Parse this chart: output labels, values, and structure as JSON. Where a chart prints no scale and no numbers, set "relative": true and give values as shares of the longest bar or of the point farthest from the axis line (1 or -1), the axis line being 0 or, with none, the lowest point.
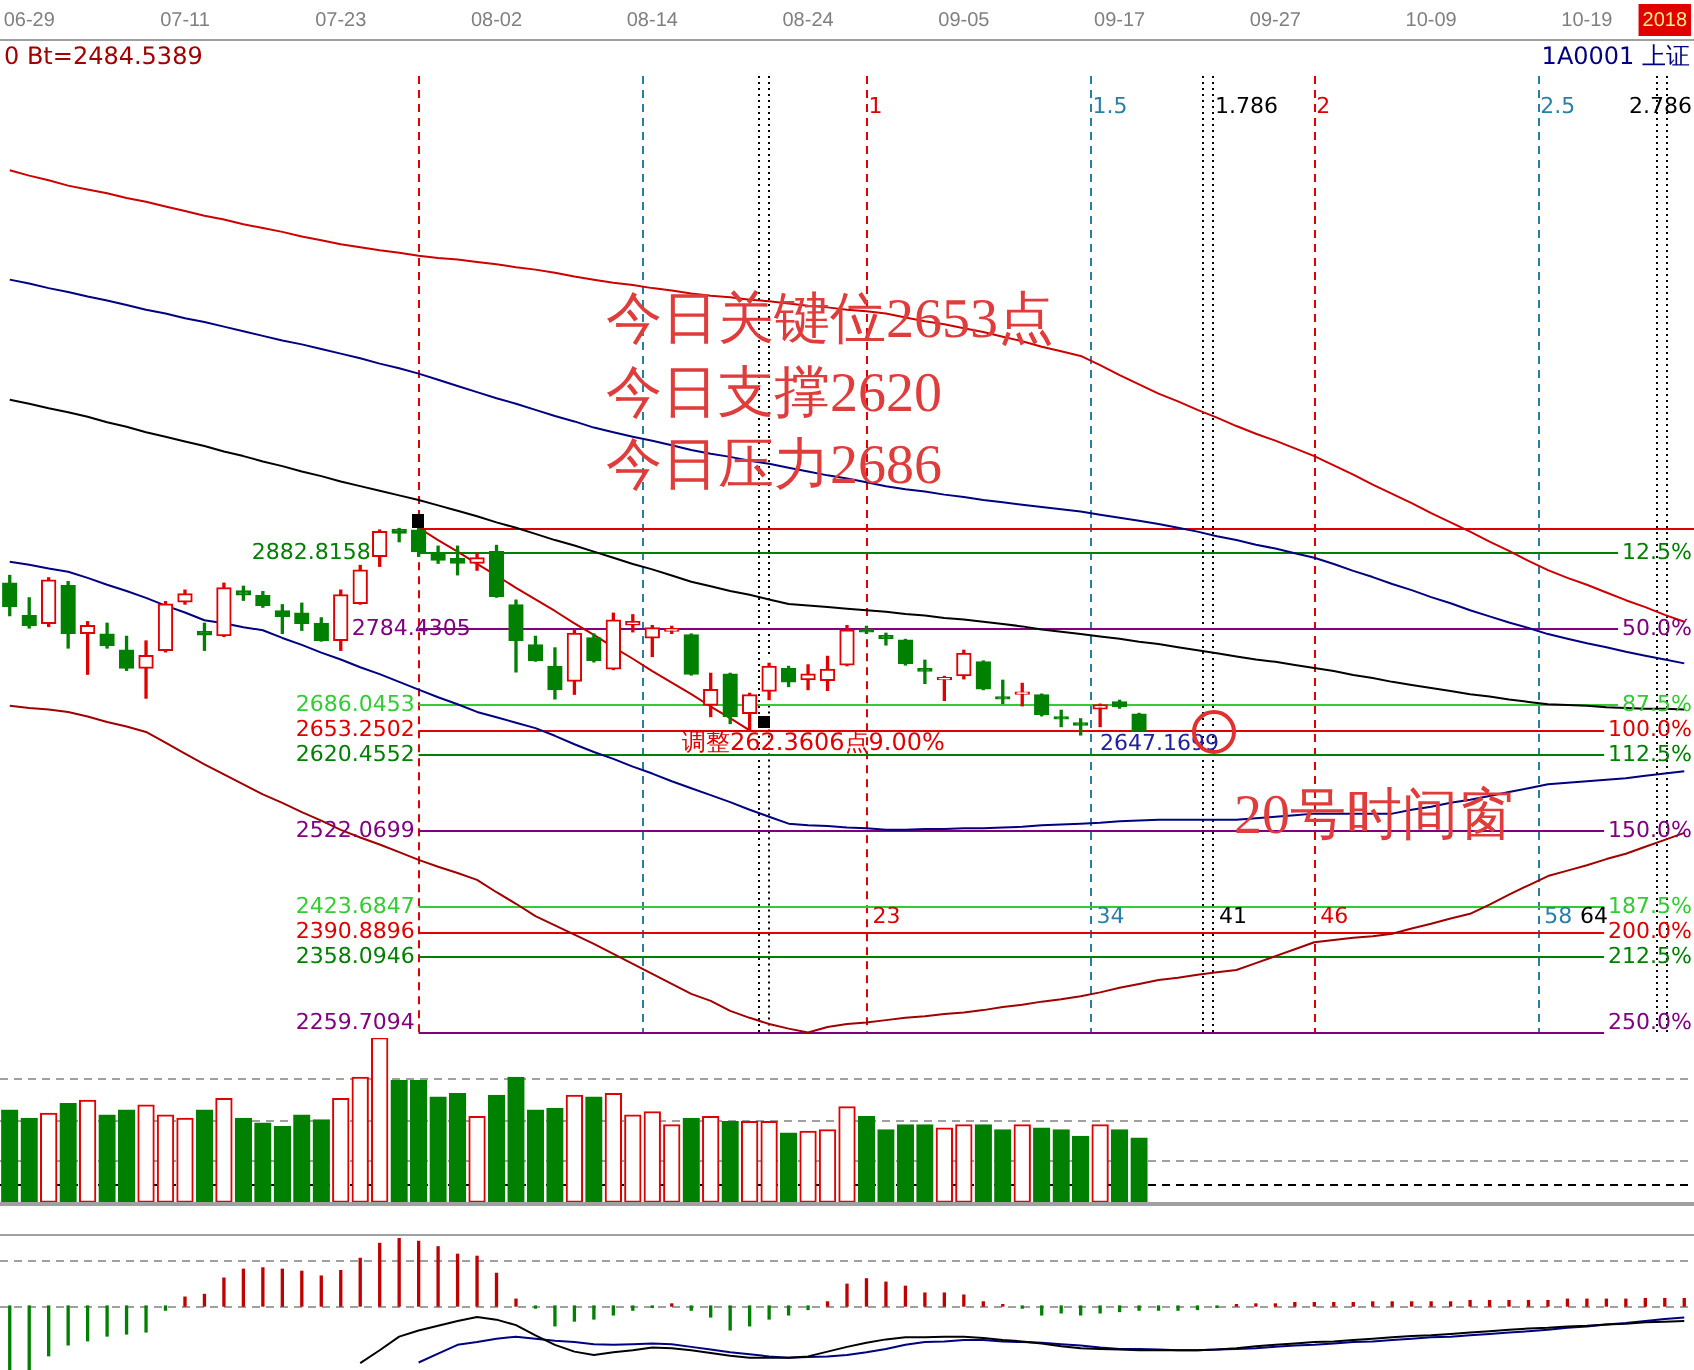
{
  "chart_data": [
    {
      "type": "candlestick",
      "tick_labels": "x",
      "ylim": [
        2259,
        3549
      ],
      "categories": [
        null,
        "06-29",
        null,
        null,
        null,
        null,
        null,
        null,
        null,
        "07-11",
        null,
        null,
        null,
        null,
        null,
        null,
        null,
        "07-23",
        null,
        null,
        null,
        null,
        null,
        null,
        null,
        "08-02",
        null,
        null,
        null,
        null,
        null,
        null,
        null,
        "08-14",
        null,
        null,
        null,
        null,
        null,
        null,
        null,
        "08-24",
        null,
        null,
        null,
        null,
        null,
        null,
        null,
        "09-05",
        null,
        null,
        null,
        null,
        null,
        null,
        null,
        "09-17",
        null,
        null,
        null,
        null,
        null,
        null,
        null,
        "09-27",
        null,
        null,
        null,
        null,
        null,
        null,
        null,
        "10-09",
        null,
        null,
        null,
        null,
        null,
        null,
        null,
        "10-19",
        null,
        null,
        null,
        "2018",
        null
      ],
      "ohlc": [
        [
          2844,
          2854,
          2802,
          2814
        ],
        [
          2802,
          2825,
          2786,
          2789
        ],
        [
          2792,
          2851,
          2788,
          2848
        ],
        [
          2841,
          2846,
          2760,
          2779
        ],
        [
          2779,
          2794,
          2726,
          2789
        ],
        [
          2778,
          2792,
          2760,
          2763
        ],
        [
          2757,
          2775,
          2731,
          2734
        ],
        [
          2734,
          2769,
          2695,
          2750
        ],
        [
          2757,
          2820,
          2755,
          2817
        ],
        [
          2820,
          2835,
          2817,
          2830
        ],
        [
          2781,
          2792,
          2757,
          2777
        ],
        [
          2776,
          2844,
          2775,
          2838
        ],
        [
          2834,
          2840,
          2822,
          2829
        ],
        [
          2828,
          2833,
          2813,
          2815
        ],
        [
          2808,
          2816,
          2779,
          2801
        ],
        [
          2805,
          2818,
          2783,
          2792
        ],
        [
          2792,
          2799,
          2769,
          2770
        ],
        [
          2770,
          2835,
          2757,
          2829
        ],
        [
          2818,
          2867,
          2817,
          2861
        ],
        [
          2879,
          2913,
          2866,
          2911
        ],
        [
          2914,
          2915,
          2898,
          2909
        ],
        [
          2913,
          2915.6108,
          2879,
          2885
        ],
        [
          2883,
          2892,
          2870,
          2874
        ],
        [
          2876,
          2892,
          2855,
          2870
        ],
        [
          2870,
          2883,
          2861,
          2877
        ],
        [
          2885,
          2893,
          2826,
          2827
        ],
        [
          2816,
          2822,
          2729,
          2770
        ],
        [
          2764,
          2775,
          2743,
          2744
        ],
        [
          2736,
          2760,
          2694,
          2706
        ],
        [
          2717,
          2783,
          2700,
          2779
        ],
        [
          2773,
          2778,
          2742,
          2744
        ],
        [
          2733,
          2805,
          2732,
          2796
        ],
        [
          2790,
          2803,
          2781,
          2794
        ],
        [
          2773,
          2789,
          2749,
          2786
        ],
        [
          2782,
          2788,
          2779,
          2785
        ],
        [
          2777,
          2778,
          2725,
          2726
        ],
        [
          2686,
          2727,
          2671,
          2706
        ],
        [
          2726,
          2727,
          2662,
          2671
        ],
        [
          2675,
          2701,
          2653.2502,
          2699
        ],
        [
          2704,
          2740,
          2693,
          2736
        ],
        [
          2733,
          2736,
          2710,
          2716
        ],
        [
          2719,
          2738,
          2706,
          2726
        ],
        [
          2718,
          2749,
          2705,
          2732
        ],
        [
          2738,
          2789,
          2737,
          2783
        ],
        [
          2784,
          2788,
          2779,
          2781
        ],
        [
          2776,
          2779,
          2764,
          2772
        ],
        [
          2770,
          2771,
          2738,
          2740
        ],
        [
          2733,
          2744,
          2714,
          2730
        ],
        [
          2719,
          2723,
          2692,
          2721
        ],
        [
          2724,
          2757,
          2720,
          2753
        ],
        [
          2742,
          2743,
          2706,
          2707
        ],
        [
          2696,
          2718,
          2688,
          2694
        ],
        [
          2700,
          2714,
          2685,
          2702
        ],
        [
          2699,
          2700,
          2672,
          2674
        ],
        [
          2669,
          2679,
          2658,
          2668
        ],
        [
          2661,
          2668,
          2647.1699,
          2660
        ],
        [
          2681,
          2687,
          2658,
          2686
        ],
        [
          2690,
          2692,
          2682,
          2684
        ],
        [
          2674,
          2675,
          2652,
          2653
        ],
        null,
        null,
        null,
        null,
        null,
        null,
        null,
        null,
        null,
        null,
        null,
        null,
        null,
        null,
        null,
        null,
        null,
        null,
        null,
        null,
        null,
        null,
        null,
        null,
        null,
        null,
        null,
        null
      ],
      "colors": [
        "#008000",
        "#008000",
        "#e00000",
        "#008000",
        "#e00000",
        "#008000",
        "#008000",
        "#e00000",
        "#e00000",
        "#e00000",
        "#008000",
        "#e00000",
        "#008000",
        "#008000",
        "#008000",
        "#008000",
        "#008000",
        "#e00000",
        "#e00000",
        "#e00000",
        "#008000",
        "#008000",
        "#008000",
        "#008000",
        "#e00000",
        "#008000",
        "#008000",
        "#008000",
        "#008000",
        "#e00000",
        "#008000",
        "#e00000",
        "#e00000",
        "#e00000",
        "#e00000",
        "#008000",
        "#e00000",
        "#008000",
        "#e00000",
        "#e00000",
        "#008000",
        "#e00000",
        "#e00000",
        "#e00000",
        "#008000",
        "#008000",
        "#008000",
        "#008000",
        "#e00000",
        "#e00000",
        "#008000",
        "#008000",
        "#e00000",
        "#008000",
        "#008000",
        "#008000",
        "#e00000",
        "#008000",
        "#008000",
        null,
        null,
        null,
        null,
        null,
        null,
        null,
        null,
        null,
        null,
        null,
        null,
        null,
        null,
        null,
        null,
        null,
        null,
        null,
        null,
        null,
        null,
        null,
        null,
        null,
        null,
        null,
        null
      ],
      "series": [
        {
          "type": "line",
          "color": "#cc0000",
          "values": [
            3380,
            3373,
            3367,
            3360,
            3355,
            3350,
            3344,
            3339,
            3333,
            3327,
            3321,
            3316,
            3310,
            3305,
            3300,
            3294,
            3289,
            3284,
            3280,
            3276,
            3273,
            3269,
            3266,
            3264,
            3261,
            3258,
            3254,
            3251,
            3247,
            3242,
            3238,
            3234,
            3231,
            3227,
            3224,
            3220,
            3217,
            3215,
            3212,
            3210,
            3207,
            3204,
            3202,
            3199,
            3197,
            3194,
            3189,
            3184,
            3180,
            3175,
            3170,
            3164,
            3158,
            3151,
            3145,
            3139,
            3127,
            3114,
            3102,
            3090,
            3080,
            3069,
            3059,
            3048,
            3038,
            3029,
            3019,
            3009,
            2997,
            2985,
            2972,
            2960,
            2948,
            2935,
            2923,
            2911,
            2898,
            2886,
            2873,
            2861,
            2851,
            2842,
            2832,
            2822,
            2813,
            2803,
            2794
          ]
        },
        {
          "type": "line",
          "color": "#000080",
          "values": [
            3238,
            3233,
            3227,
            3222,
            3216,
            3211,
            3205,
            3199,
            3194,
            3188,
            3183,
            3177,
            3171,
            3165,
            3159,
            3154,
            3148,
            3142,
            3136,
            3129,
            3123,
            3116,
            3108,
            3100,
            3092,
            3084,
            3077,
            3069,
            3061,
            3054,
            3046,
            3040,
            3034,
            3029,
            3023,
            3017,
            3012,
            3008,
            3003,
            2999,
            2994,
            2989,
            2984,
            2980,
            2975,
            2970,
            2966,
            2963,
            2959,
            2956,
            2952,
            2949,
            2946,
            2943,
            2940,
            2937,
            2933,
            2929,
            2925,
            2921,
            2916,
            2911,
            2905,
            2900,
            2894,
            2889,
            2883,
            2877,
            2869,
            2860,
            2852,
            2843,
            2835,
            2826,
            2818,
            2809,
            2801,
            2793,
            2786,
            2778,
            2772,
            2766,
            2761,
            2755,
            2750,
            2745,
            2740
          ]
        },
        {
          "type": "line",
          "color": "#000000",
          "values": [
            3082,
            3077,
            3071,
            3066,
            3060,
            3053,
            3047,
            3040,
            3034,
            3028,
            3022,
            3015,
            3009,
            3002,
            2996,
            2989,
            2983,
            2976,
            2970,
            2964,
            2958,
            2952,
            2945,
            2938,
            2931,
            2923,
            2916,
            2908,
            2900,
            2893,
            2885,
            2877,
            2869,
            2862,
            2854,
            2846,
            2840,
            2834,
            2829,
            2823,
            2817,
            2815,
            2813,
            2811,
            2809,
            2807,
            2804,
            2802,
            2799,
            2797,
            2794,
            2791,
            2788,
            2784,
            2781,
            2778,
            2775,
            2772,
            2768,
            2765,
            2761,
            2757,
            2753,
            2749,
            2745,
            2742,
            2738,
            2734,
            2730,
            2725,
            2721,
            2716,
            2712,
            2708,
            2704,
            2700,
            2697,
            2693,
            2690,
            2687,
            2686,
            2685,
            2683,
            2682,
            2681,
            2681,
            2680
          ]
        },
        {
          "type": "line",
          "color": "#000080",
          "values": [
            2872,
            2868,
            2863,
            2859,
            2851,
            2842,
            2834,
            2825,
            2815,
            2806,
            2796,
            2792,
            2787,
            2783,
            2773,
            2764,
            2754,
            2745,
            2735,
            2726,
            2716,
            2706,
            2696,
            2687,
            2677,
            2670,
            2663,
            2656,
            2646,
            2635,
            2625,
            2616,
            2606,
            2597,
            2587,
            2578,
            2569,
            2560,
            2550,
            2541,
            2532,
            2530,
            2529,
            2527,
            2526,
            2524,
            2524,
            2525,
            2525,
            2526,
            2526,
            2527,
            2528,
            2530,
            2531,
            2532,
            2533,
            2535,
            2536,
            2537,
            2537,
            2537,
            2537,
            2537,
            2539,
            2541,
            2543,
            2545,
            2545,
            2545,
            2545,
            2545,
            2550,
            2554,
            2559,
            2563,
            2568,
            2573,
            2578,
            2583,
            2585,
            2587,
            2589,
            2591,
            2594,
            2597,
            2600
          ]
        },
        {
          "type": "line",
          "color": "#a00000",
          "values": [
            2685,
            2682,
            2680,
            2677,
            2671,
            2664,
            2658,
            2651,
            2637,
            2623,
            2609,
            2596,
            2583,
            2570,
            2559,
            2547,
            2536,
            2524,
            2514,
            2505,
            2495,
            2485,
            2476,
            2468,
            2459,
            2443,
            2428,
            2412,
            2400,
            2388,
            2376,
            2363,
            2350,
            2337,
            2324,
            2311,
            2302,
            2289,
            2280,
            2272,
            2266,
            2261,
            2268,
            2272,
            2274,
            2277,
            2280,
            2282,
            2285,
            2287,
            2290,
            2294,
            2297,
            2301,
            2304,
            2308,
            2313,
            2319,
            2324,
            2329,
            2332,
            2336,
            2339,
            2342,
            2351,
            2360,
            2369,
            2378,
            2381,
            2384,
            2386,
            2389,
            2396,
            2402,
            2409,
            2415,
            2427,
            2440,
            2452,
            2464,
            2471,
            2478,
            2486,
            2493,
            2502,
            2511,
            2520
          ]
        },
        {
          "type": "line",
          "color": "#c00000",
          "values": [
            null,
            null,
            null,
            null,
            null,
            null,
            null,
            null,
            null,
            null,
            null,
            null,
            null,
            null,
            null,
            null,
            null,
            null,
            null,
            null,
            null,
            2916,
            2900,
            2885,
            2869,
            2854,
            2838,
            2823,
            2808,
            2792,
            2777,
            2761,
            2746,
            2730,
            2715,
            2700,
            2684,
            2669,
            2653,
            null,
            null,
            null,
            null,
            null,
            null,
            null,
            null,
            null,
            null,
            null,
            null,
            null,
            null,
            null,
            null,
            null,
            null,
            null,
            null,
            null,
            null,
            null,
            null,
            null,
            null,
            null,
            null,
            null,
            null,
            null,
            null,
            null,
            null,
            null,
            null,
            null,
            null,
            null,
            null,
            null,
            null,
            null,
            null,
            null,
            null,
            null,
            null
          ]
        }
      ],
      "ref_lines": [
        {
          "axis": "y",
          "value": 2915.6108,
          "color": "#e00000"
        },
        {
          "axis": "y",
          "value": 2882.8158,
          "label": "2882.8158",
          "color": "#008000"
        },
        {
          "axis": "y",
          "value": 2784.4305,
          "label": "2784.4305",
          "color": "#800080"
        },
        {
          "axis": "y",
          "value": 2686.0453,
          "label": "2686.0453",
          "color": "#33cc33"
        },
        {
          "axis": "y",
          "value": 2653.2502,
          "label": "2653.2502",
          "color": "#e00000"
        },
        {
          "axis": "y",
          "value": 2620.4552,
          "label": "2620.4552",
          "color": "#008000"
        },
        {
          "axis": "y",
          "value": 2522.0699,
          "label": "2522.0699",
          "color": "#800080"
        },
        {
          "axis": "y",
          "value": 2423.6847,
          "label": "2423.6847",
          "color": "#33cc33"
        },
        {
          "axis": "y",
          "value": 2390.8896,
          "label": "2390.8896",
          "color": "#e00000"
        },
        {
          "axis": "y",
          "value": 2358.0946,
          "label": "2358.0946",
          "color": "#008000"
        },
        {
          "axis": "y",
          "value": 2259.7094,
          "label": "2259.7094",
          "color": "#800080"
        }
      ],
      "annotations": [
        "0 Bt=2484.5389",
        "1A0001 上证",
        "今日关键位2653点",
        "今日支撑2620",
        "今日压力2686",
        "20号时间窗",
        "1",
        "1.5",
        "1.786",
        "2",
        "2.5",
        "2.786",
        "12.5%",
        "50.0%",
        "87.5%",
        "100.0%",
        "112.5%",
        "150.0%",
        "187.5%",
        "200.0%",
        "212.5%",
        "250.0%",
        "23",
        "34",
        "41",
        "46",
        "58",
        "64",
        "调整262.3606点9.00%",
        "2647.1699"
      ]
    },
    {
      "type": "bar",
      "relative": true,
      "tick_labels": false,
      "categories": [
        null,
        null,
        null,
        null,
        null,
        null,
        null,
        null,
        null,
        null,
        null,
        null,
        null,
        null,
        null,
        null,
        null,
        null,
        null,
        null,
        null,
        null,
        null,
        null,
        null,
        null,
        null,
        null,
        null,
        null,
        null,
        null,
        null,
        null,
        null,
        null,
        null,
        null,
        null,
        null,
        null,
        null,
        null,
        null,
        null,
        null,
        null,
        null,
        null,
        null,
        null,
        null,
        null,
        null,
        null,
        null,
        null,
        null,
        null,
        null,
        null,
        null,
        null,
        null,
        null,
        null,
        null,
        null,
        null,
        null,
        null,
        null,
        null,
        null,
        null,
        null,
        null,
        null,
        null,
        null,
        null,
        null,
        null,
        null,
        null,
        null,
        null
      ],
      "values": [
        0.56,
        0.51,
        0.54,
        0.6,
        0.62,
        0.53,
        0.56,
        0.59,
        0.53,
        0.51,
        0.56,
        0.63,
        0.51,
        0.48,
        0.46,
        0.53,
        0.5,
        0.63,
        0.76,
        1,
        0.74,
        0.74,
        0.64,
        0.66,
        0.52,
        0.65,
        0.76,
        0.56,
        0.57,
        0.65,
        0.64,
        0.66,
        0.53,
        0.55,
        0.47,
        0.51,
        0.52,
        0.49,
        0.49,
        0.49,
        0.42,
        0.43,
        0.44,
        0.58,
        0.52,
        0.44,
        0.47,
        0.47,
        0.45,
        0.47,
        0.47,
        0.44,
        0.47,
        0.45,
        0.44,
        0.4,
        0.47,
        0.44,
        0.39,
        null,
        null,
        null,
        null,
        null,
        null,
        null,
        null,
        null,
        null,
        null,
        null,
        null,
        null,
        null,
        null,
        null,
        null,
        null,
        null,
        null,
        null,
        null,
        null,
        null,
        null,
        null,
        null
      ],
      "colors": [
        "#008000",
        "#008000",
        "#e00000",
        "#008000",
        "#e00000",
        "#008000",
        "#008000",
        "#e00000",
        "#e00000",
        "#e00000",
        "#008000",
        "#e00000",
        "#008000",
        "#008000",
        "#008000",
        "#008000",
        "#008000",
        "#e00000",
        "#e00000",
        "#e00000",
        "#008000",
        "#008000",
        "#008000",
        "#008000",
        "#e00000",
        "#008000",
        "#008000",
        "#008000",
        "#008000",
        "#e00000",
        "#008000",
        "#e00000",
        "#e00000",
        "#e00000",
        "#e00000",
        "#008000",
        "#e00000",
        "#008000",
        "#e00000",
        "#e00000",
        "#008000",
        "#e00000",
        "#e00000",
        "#e00000",
        "#008000",
        "#008000",
        "#008000",
        "#008000",
        "#e00000",
        "#e00000",
        "#008000",
        "#008000",
        "#e00000",
        "#008000",
        "#008000",
        "#008000",
        "#e00000",
        "#008000",
        "#008000",
        null,
        null,
        null,
        null,
        null,
        null,
        null,
        null,
        null,
        null,
        null,
        null,
        null,
        null,
        null,
        null,
        null,
        null,
        null,
        null,
        null,
        null,
        null,
        null,
        null,
        null,
        null,
        null
      ],
      "ref_lines": [
        {
          "axis": "y",
          "value": 0.75,
          "color": "#a0a0a0",
          "line_style": "dashed"
        },
        {
          "axis": "y",
          "value": 0.5,
          "color": "#a0a0a0",
          "line_style": "dashed"
        },
        {
          "axis": "y",
          "value": 0.25,
          "color": "#a0a0a0",
          "line_style": "dashed"
        },
        {
          "axis": "y",
          "value": 0.1,
          "color": "#000000",
          "line_style": "dashed"
        }
      ]
    },
    {
      "type": "bar",
      "relative": true,
      "tick_labels": false,
      "categories": [
        null,
        null,
        null,
        null,
        null,
        null,
        null,
        null,
        null,
        null,
        null,
        null,
        null,
        null,
        null,
        null,
        null,
        null,
        null,
        null,
        null,
        null,
        null,
        null,
        null,
        null,
        null,
        null,
        null,
        null,
        null,
        null,
        null,
        null,
        null,
        null,
        null,
        null,
        null,
        null,
        null,
        null,
        null,
        null,
        null,
        null,
        null,
        null,
        null,
        null,
        null,
        null,
        null,
        null,
        null,
        null,
        null,
        null,
        null,
        null,
        null,
        null,
        null,
        null,
        null,
        null,
        null,
        null,
        null,
        null,
        null,
        null,
        null,
        null,
        null,
        null,
        null,
        null,
        null,
        null,
        null,
        null,
        null,
        null,
        null,
        null,
        null
      ],
      "series": [
        {
          "type": "bar",
          "values": [
            -0.94,
            -0.94,
            -0.73,
            -0.57,
            -0.51,
            -0.44,
            -0.41,
            -0.38,
            -0.06,
            0.13,
            0.17,
            0.41,
            0.54,
            0.56,
            0.54,
            0.51,
            0.44,
            0.52,
            0.7,
            0.92,
            1,
            0.95,
            0.87,
            0.76,
            0.73,
            0.48,
            0.1,
            -0.03,
            -0.29,
            -0.22,
            -0.19,
            -0.13,
            -0.06,
            -0.02,
            0.03,
            -0.06,
            -0.16,
            -0.35,
            -0.29,
            -0.19,
            -0.13,
            -0.05,
            0.06,
            0.32,
            0.4,
            0.35,
            0.29,
            0.19,
            0.19,
            0.16,
            0.06,
            0.02,
            -0.03,
            -0.13,
            -0.1,
            -0.13,
            -0.1,
            -0.08,
            -0.06,
            -0.06,
            -0.06,
            -0.05,
            -0.02,
            0.02,
            0.03,
            0.03,
            0.05,
            0.05,
            0.05,
            0.05,
            0.06,
            0.06,
            0.06,
            0.06,
            0.06,
            0.08,
            0.08,
            0.08,
            0.08,
            0.08,
            0.1,
            0.1,
            0.1,
            0.1,
            0.11,
            0.11,
            0.11
          ],
          "colors": [
            "#008000",
            "#008000",
            "#008000",
            "#008000",
            "#008000",
            "#008000",
            "#008000",
            "#008000",
            "#008000",
            "#c00000",
            "#c00000",
            "#c00000",
            "#c00000",
            "#c00000",
            "#c00000",
            "#c00000",
            "#c00000",
            "#c00000",
            "#c00000",
            "#c00000",
            "#c00000",
            "#c00000",
            "#c00000",
            "#c00000",
            "#c00000",
            "#c00000",
            "#c00000",
            "#008000",
            "#008000",
            "#008000",
            "#008000",
            "#008000",
            "#008000",
            "#008000",
            "#c00000",
            "#008000",
            "#008000",
            "#008000",
            "#008000",
            "#008000",
            "#008000",
            "#008000",
            "#c00000",
            "#c00000",
            "#c00000",
            "#c00000",
            "#c00000",
            "#c00000",
            "#c00000",
            "#c00000",
            "#c00000",
            "#c00000",
            "#008000",
            "#008000",
            "#008000",
            "#008000",
            "#008000",
            "#008000",
            "#008000",
            "#008000",
            "#008000",
            "#008000",
            "#008000",
            "#c00000",
            "#c00000",
            "#c00000",
            "#c00000",
            "#c00000",
            "#c00000",
            "#c00000",
            "#c00000",
            "#c00000",
            "#c00000",
            "#c00000",
            "#c00000",
            "#c00000",
            "#c00000",
            "#c00000",
            "#c00000",
            "#c00000",
            "#c00000",
            "#c00000",
            "#c00000",
            "#c00000",
            "#c00000",
            "#c00000",
            "#c00000"
          ]
        },
        {
          "type": "line",
          "color": "#000000",
          "values": [
            null,
            null,
            null,
            null,
            null,
            null,
            null,
            null,
            null,
            null,
            null,
            null,
            null,
            null,
            null,
            null,
            null,
            null,
            -0.84,
            -0.65,
            -0.45,
            -0.36,
            -0.29,
            -0.22,
            -0.16,
            -0.2,
            -0.28,
            -0.43,
            -0.57,
            -0.67,
            -0.72,
            -0.68,
            -0.65,
            -0.61,
            -0.62,
            -0.65,
            -0.69,
            -0.73,
            -0.76,
            -0.76,
            -0.76,
            -0.74,
            -0.67,
            -0.6,
            -0.54,
            -0.49,
            -0.46,
            -0.46,
            -0.45,
            -0.45,
            -0.47,
            -0.5,
            -0.52,
            -0.55,
            -0.59,
            -0.62,
            -0.63,
            -0.64,
            -0.65,
            -0.65,
            -0.65,
            -0.65,
            -0.64,
            -0.62,
            -0.59,
            -0.57,
            -0.55,
            -0.53,
            -0.52,
            -0.5,
            -0.48,
            -0.46,
            -0.44,
            -0.43,
            -0.41,
            -0.39,
            -0.37,
            -0.35,
            -0.33,
            -0.32,
            -0.3,
            -0.29,
            -0.27,
            -0.26,
            -0.24,
            -0.23,
            -0.22
          ]
        },
        {
          "type": "line",
          "color": "#000080",
          "values": [
            null,
            null,
            null,
            null,
            null,
            null,
            null,
            null,
            null,
            null,
            null,
            null,
            null,
            null,
            null,
            null,
            null,
            null,
            null,
            null,
            null,
            -0.83,
            -0.7,
            -0.57,
            -0.53,
            -0.48,
            -0.45,
            -0.48,
            -0.51,
            -0.53,
            -0.56,
            -0.57,
            -0.56,
            -0.55,
            -0.56,
            -0.6,
            -0.64,
            -0.68,
            -0.71,
            -0.74,
            -0.76,
            -0.75,
            -0.74,
            -0.72,
            -0.68,
            -0.63,
            -0.57,
            -0.53,
            -0.52,
            -0.5,
            -0.5,
            -0.52,
            -0.53,
            -0.54,
            -0.56,
            -0.58,
            -0.61,
            -0.63,
            -0.63,
            -0.64,
            -0.65,
            -0.65,
            -0.64,
            -0.63,
            -0.62,
            -0.6,
            -0.58,
            -0.57,
            -0.55,
            -0.53,
            -0.52,
            -0.5,
            -0.48,
            -0.46,
            -0.45,
            -0.43,
            -0.41,
            -0.39,
            -0.37,
            -0.35,
            -0.32,
            -0.3,
            -0.27,
            -0.25,
            -0.22,
            -0.19,
            -0.17
          ]
        }
      ],
      "ref_lines": [
        {
          "axis": "y",
          "value": 0,
          "color": "#a0a0a0",
          "line_style": "dashed"
        },
        {
          "axis": "y",
          "value": 0.67,
          "color": "#a0a0a0",
          "line_style": "dashed"
        }
      ]
    }
  ]
}
